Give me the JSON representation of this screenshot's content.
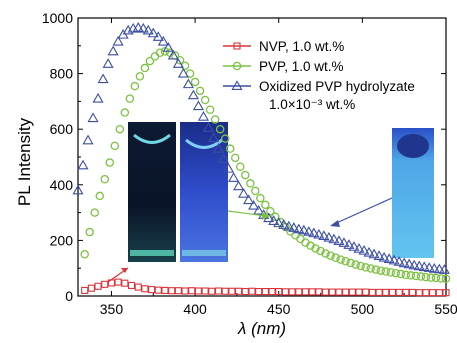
{
  "chart_data": {
    "type": "scatter",
    "xlabel": "λ (nm)",
    "ylabel": "PL Intensity",
    "xlim": [
      330,
      550
    ],
    "ylim": [
      0,
      1000
    ],
    "x_ticks": [
      "350",
      "400",
      "450",
      "500",
      "550"
    ],
    "y_ticks": [
      "0",
      "200",
      "400",
      "600",
      "800",
      "1000"
    ],
    "x_tick_values": [
      350,
      400,
      450,
      500,
      550
    ],
    "y_tick_values": [
      0,
      200,
      400,
      600,
      800,
      1000
    ],
    "legend_position": "top-right",
    "legend_extra": "1.0×10⁻³ wt.%",
    "series": [
      {
        "name": "NVP, 1.0 wt.%",
        "color": "#d9353b",
        "marker": "square",
        "x": [
          334,
          338,
          342,
          346,
          350,
          354,
          358,
          362,
          366,
          370,
          374,
          378,
          382,
          386,
          390,
          394,
          398,
          402,
          406,
          410,
          414,
          418,
          422,
          426,
          430,
          434,
          438,
          442,
          446,
          450,
          454,
          458,
          462,
          466,
          470,
          474,
          478,
          482,
          486,
          490,
          494,
          498,
          502,
          506,
          510,
          514,
          518,
          522,
          526,
          530,
          534,
          538,
          542,
          546,
          550
        ],
        "y": [
          20,
          28,
          35,
          42,
          47,
          50,
          46,
          38,
          32,
          26,
          23,
          21,
          20,
          19,
          19,
          18,
          19,
          18,
          18,
          17,
          18,
          17,
          17,
          17,
          16,
          17,
          16,
          16,
          16,
          16,
          15,
          15,
          15,
          15,
          15,
          15,
          14,
          14,
          14,
          14,
          14,
          14,
          14,
          13,
          13,
          13,
          13,
          13,
          13,
          13,
          12,
          12,
          12,
          12,
          12
        ]
      },
      {
        "name": "PVP, 1.0 wt.%",
        "color": "#7cc242",
        "marker": "circle",
        "x": [
          334,
          337,
          340,
          343,
          346,
          349,
          352,
          355,
          358,
          361,
          364,
          367,
          370,
          373,
          376,
          379,
          382,
          385,
          388,
          391,
          394,
          397,
          400,
          403,
          406,
          409,
          412,
          415,
          418,
          421,
          424,
          427,
          430,
          433,
          436,
          439,
          442,
          445,
          448,
          451,
          454,
          457,
          460,
          463,
          466,
          469,
          472,
          475,
          478,
          481,
          484,
          487,
          490,
          493,
          496,
          499,
          502,
          505,
          508,
          511,
          514,
          517,
          520,
          523,
          526,
          529,
          532,
          535,
          538,
          541,
          544,
          547,
          550
        ],
        "y": [
          150,
          230,
          300,
          360,
          420,
          480,
          540,
          600,
          660,
          710,
          755,
          790,
          820,
          845,
          862,
          875,
          880,
          875,
          865,
          848,
          828,
          800,
          770,
          738,
          705,
          670,
          635,
          600,
          566,
          530,
          497,
          465,
          435,
          405,
          378,
          352,
          328,
          305,
          285,
          266,
          248,
          232,
          218,
          205,
          192,
          181,
          171,
          162,
          153,
          145,
          138,
          131,
          125,
          119,
          113,
          108,
          103,
          99,
          95,
          91,
          88,
          85,
          82,
          79,
          76,
          74,
          72,
          70,
          68,
          66,
          65,
          63,
          62
        ]
      },
      {
        "name": "Oxidized PVP hydrolyzate",
        "color": "#3c4fa3",
        "marker": "triangle",
        "x": [
          330,
          333,
          336,
          339,
          342,
          345,
          348,
          351,
          354,
          357,
          360,
          363,
          366,
          369,
          372,
          375,
          378,
          381,
          384,
          387,
          390,
          393,
          396,
          399,
          402,
          405,
          408,
          411,
          414,
          417,
          420,
          423,
          426,
          429,
          432,
          435,
          438,
          441,
          444,
          447,
          450,
          453,
          456,
          459,
          462,
          465,
          468,
          471,
          474,
          477,
          480,
          483,
          486,
          489,
          492,
          495,
          498,
          501,
          504,
          507,
          510,
          513,
          516,
          519,
          522,
          525,
          528,
          531,
          534,
          537,
          540,
          543,
          546,
          549
        ],
        "y": [
          380,
          470,
          560,
          640,
          710,
          780,
          835,
          880,
          915,
          940,
          955,
          962,
          965,
          962,
          955,
          945,
          932,
          915,
          893,
          865,
          835,
          800,
          762,
          722,
          683,
          645,
          605,
          568,
          530,
          493,
          458,
          425,
          395,
          368,
          345,
          325,
          307,
          292,
          280,
          270,
          262,
          256,
          250,
          245,
          240,
          236,
          231,
          226,
          221,
          216,
          210,
          204,
          198,
          191,
          184,
          177,
          170,
          163,
          156,
          150,
          144,
          138,
          133,
          128,
          123,
          118,
          114,
          110,
          107,
          104,
          101,
          98,
          96,
          94
        ]
      }
    ]
  },
  "ui": {
    "axis_color": "#000000"
  }
}
